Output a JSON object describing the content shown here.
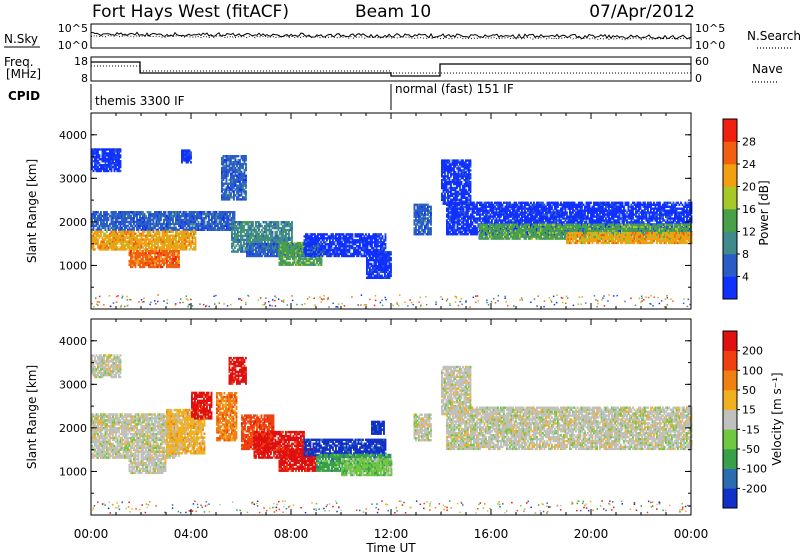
{
  "header": {
    "station": "Fort Hays West (fitACF)",
    "beam": "Beam 10",
    "date": "07/Apr/2012"
  },
  "noise_panel": {
    "left_label": "N.Sky",
    "right_label": "N.Search",
    "left_ticks": [
      "10^5",
      "10^0"
    ],
    "right_ticks": [
      "10^5",
      "10^0"
    ]
  },
  "freq_panel": {
    "left_label_1": "Freq.",
    "left_label_2": "[MHz]",
    "right_label": "Nave",
    "left_ticks": [
      "18",
      "8"
    ],
    "right_ticks": [
      "60",
      "0"
    ]
  },
  "cpid_panel": {
    "label": "CPID",
    "segments": [
      {
        "start_hour": 0,
        "end_hour": 12,
        "name": "themis 3300 IF"
      },
      {
        "start_hour": 12,
        "end_hour": 24,
        "name": "normal (fast) 151 IF"
      }
    ]
  },
  "chart_data": [
    {
      "type": "heatmap",
      "id": "power",
      "ylabel": "Slant Range [km]",
      "xlim": [
        0,
        24
      ],
      "ylim": [
        0,
        4500
      ],
      "yticks": [
        "1000",
        "2000",
        "3000",
        "4000"
      ],
      "colorbar": {
        "title": "Power [dB]",
        "ticks": [
          "4",
          "8",
          "12",
          "16",
          "20",
          "24",
          "28"
        ],
        "colors": [
          "#1030ff",
          "#2a5cc8",
          "#3f8a8a",
          "#48a048",
          "#a8c828",
          "#f0a010",
          "#f06010",
          "#f02010"
        ]
      },
      "regions": [
        {
          "t0": 0.0,
          "t1": 1.2,
          "r0": 3150,
          "r1": 3650,
          "level": 0
        },
        {
          "t0": 3.6,
          "t1": 4.0,
          "r0": 3350,
          "r1": 3650,
          "level": 0
        },
        {
          "t0": 0.0,
          "t1": 5.7,
          "r0": 1800,
          "r1": 2250,
          "level": 1
        },
        {
          "t0": 0.0,
          "t1": 4.2,
          "r0": 1350,
          "r1": 1800,
          "level": 5
        },
        {
          "t0": 1.5,
          "t1": 3.5,
          "r0": 950,
          "r1": 1350,
          "level": 6
        },
        {
          "t0": 5.2,
          "t1": 6.2,
          "r0": 2500,
          "r1": 3500,
          "level": 1
        },
        {
          "t0": 5.6,
          "t1": 8.0,
          "r0": 1300,
          "r1": 2000,
          "level": 2
        },
        {
          "t0": 6.2,
          "t1": 8.5,
          "r0": 1200,
          "r1": 1500,
          "level": 1
        },
        {
          "t0": 7.5,
          "t1": 9.2,
          "r0": 1000,
          "r1": 1500,
          "level": 3
        },
        {
          "t0": 8.5,
          "t1": 11.8,
          "r0": 1200,
          "r1": 1700,
          "level": 0
        },
        {
          "t0": 11.0,
          "t1": 12.0,
          "r0": 700,
          "r1": 1300,
          "level": 0
        },
        {
          "t0": 12.9,
          "t1": 13.6,
          "r0": 1700,
          "r1": 2400,
          "level": 1
        },
        {
          "t0": 14.0,
          "t1": 15.2,
          "r0": 2400,
          "r1": 3400,
          "level": 0
        },
        {
          "t0": 14.2,
          "t1": 24.0,
          "r0": 1700,
          "r1": 2450,
          "level": 0
        },
        {
          "t0": 15.5,
          "t1": 24.0,
          "r0": 1600,
          "r1": 1950,
          "level": 3
        },
        {
          "t0": 19.0,
          "t1": 24.0,
          "r0": 1500,
          "r1": 1750,
          "level": 5
        }
      ]
    },
    {
      "type": "heatmap",
      "id": "velocity",
      "ylabel": "Slant Range [km]",
      "xlabel": "Time UT",
      "xlim": [
        0,
        24
      ],
      "ylim": [
        0,
        4500
      ],
      "yticks": [
        "1000",
        "2000",
        "3000",
        "4000"
      ],
      "xticks": [
        "00:00",
        "04:00",
        "08:00",
        "12:00",
        "16:00",
        "20:00",
        "00:00"
      ],
      "colorbar": {
        "title": "Velocity [m s⁻¹]",
        "ticks": [
          "200",
          "100",
          "50",
          "15",
          "-15",
          "-50",
          "-100",
          "-200"
        ],
        "colors": [
          "#1030c8",
          "#2a6cb0",
          "#38a048",
          "#70c840",
          "#c0c0bc",
          "#f0b020",
          "#f08010",
          "#f04010",
          "#e01010"
        ]
      },
      "regions": [
        {
          "t0": 0.0,
          "t1": 1.2,
          "r0": 3150,
          "r1": 3650,
          "level": 4
        },
        {
          "t0": 0.0,
          "t1": 3.5,
          "r0": 1300,
          "r1": 2300,
          "level": 4
        },
        {
          "t0": 1.5,
          "t1": 3.0,
          "r0": 950,
          "r1": 1300,
          "level": 4
        },
        {
          "t0": 3.0,
          "t1": 4.5,
          "r0": 1400,
          "r1": 2400,
          "level": 5
        },
        {
          "t0": 4.0,
          "t1": 4.8,
          "r0": 2200,
          "r1": 2800,
          "level": 8
        },
        {
          "t0": 5.0,
          "t1": 5.8,
          "r0": 1700,
          "r1": 2800,
          "level": 6
        },
        {
          "t0": 5.5,
          "t1": 6.2,
          "r0": 3000,
          "r1": 3600,
          "level": 8
        },
        {
          "t0": 6.0,
          "t1": 7.3,
          "r0": 1500,
          "r1": 2300,
          "level": 7
        },
        {
          "t0": 6.5,
          "t1": 8.5,
          "r0": 1300,
          "r1": 1900,
          "level": 8
        },
        {
          "t0": 7.5,
          "t1": 9.0,
          "r0": 1000,
          "r1": 1500,
          "level": 8
        },
        {
          "t0": 8.5,
          "t1": 11.8,
          "r0": 1350,
          "r1": 1750,
          "level": 0
        },
        {
          "t0": 9.0,
          "t1": 12.0,
          "r0": 1000,
          "r1": 1400,
          "level": 2
        },
        {
          "t0": 10.0,
          "t1": 12.0,
          "r0": 900,
          "r1": 1300,
          "level": 3
        },
        {
          "t0": 11.2,
          "t1": 11.7,
          "r0": 1850,
          "r1": 2150,
          "level": 0
        },
        {
          "t0": 12.9,
          "t1": 13.6,
          "r0": 1700,
          "r1": 2300,
          "level": 4
        },
        {
          "t0": 14.0,
          "t1": 15.2,
          "r0": 2300,
          "r1": 3400,
          "level": 4
        },
        {
          "t0": 14.2,
          "t1": 24.0,
          "r0": 1500,
          "r1": 2450,
          "level": 4
        }
      ]
    }
  ]
}
